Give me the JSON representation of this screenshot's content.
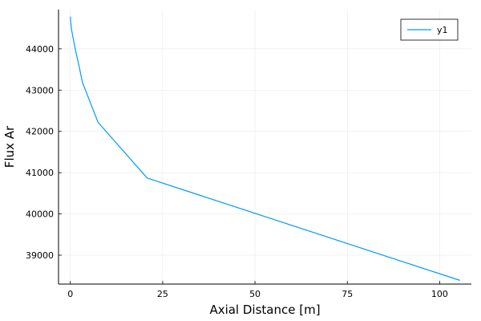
{
  "chart_data": {
    "type": "line",
    "title": "",
    "xlabel": "Axial Distance [m]",
    "ylabel": "Flux Ar",
    "xlim": [
      -3.2,
      108.6
    ],
    "ylim": [
      38300,
      44950
    ],
    "xticks": [
      0,
      25,
      50,
      75,
      100
    ],
    "yticks": [
      39000,
      40000,
      41000,
      42000,
      43000,
      44000
    ],
    "grid": true,
    "legend": "top-right",
    "series": [
      {
        "name": "y1",
        "color": "#009AFA",
        "x": [
          0.0,
          0.2,
          0.5,
          1.0,
          1.5,
          2.2,
          3.3,
          5.4,
          7.5,
          20.8,
          105.5
        ],
        "y": [
          44780,
          44550,
          44380,
          44150,
          43920,
          43650,
          43180,
          42700,
          42220,
          40870,
          38390
        ]
      }
    ]
  }
}
